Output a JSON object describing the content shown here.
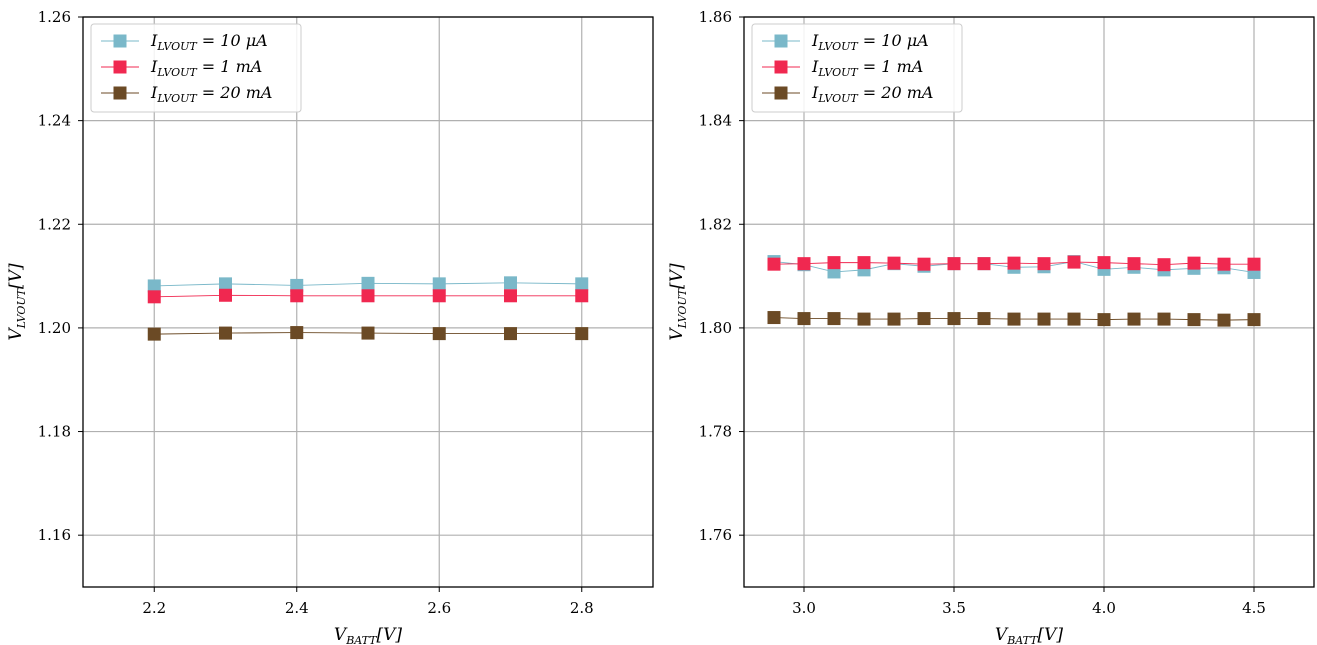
{
  "chart_data": [
    {
      "type": "line",
      "xlabel": {
        "main": "V",
        "sub": "BATT",
        "unit": "[V]"
      },
      "ylabel": {
        "main": "V",
        "sub": "LVOUT",
        "unit": "[V]"
      },
      "xlim": [
        2.1,
        2.9
      ],
      "ylim": [
        1.15,
        1.26
      ],
      "xticks": [
        2.2,
        2.4,
        2.6,
        2.8
      ],
      "xtick_labels": [
        "2.2",
        "2.4",
        "2.6",
        "2.8"
      ],
      "yticks": [
        1.16,
        1.18,
        1.2,
        1.22,
        1.24,
        1.26
      ],
      "ytick_labels": [
        "1.16",
        "1.18",
        "1.20",
        "1.22",
        "1.24",
        "1.26"
      ],
      "grid": true,
      "legend_position": "top-left",
      "x": [
        2.2,
        2.3,
        2.4,
        2.5,
        2.6,
        2.7,
        2.8
      ],
      "series": [
        {
          "name_main": "I",
          "name_sub": "LVOUT",
          "name_rest": " = 10 μA",
          "color": "#7ab8c9",
          "values": [
            1.2081,
            1.2085,
            1.2082,
            1.2086,
            1.2085,
            1.2087,
            1.2085
          ]
        },
        {
          "name_main": "I",
          "name_sub": "LVOUT",
          "name_rest": " = 1 mA",
          "color": "#f02850",
          "values": [
            1.206,
            1.2063,
            1.2062,
            1.2062,
            1.2062,
            1.2062,
            1.2062
          ]
        },
        {
          "name_main": "I",
          "name_sub": "LVOUT",
          "name_rest": " = 20 mA",
          "color": "#6b4a25",
          "values": [
            1.1988,
            1.199,
            1.1991,
            1.199,
            1.1989,
            1.1989,
            1.1989
          ]
        }
      ]
    },
    {
      "type": "line",
      "xlabel": {
        "main": "V",
        "sub": "BATT",
        "unit": "[V]"
      },
      "ylabel": {
        "main": "V",
        "sub": "LVOUT",
        "unit": "[V]"
      },
      "xlim": [
        2.8,
        4.7
      ],
      "ylim": [
        1.75,
        1.86
      ],
      "xticks": [
        3.0,
        3.5,
        4.0,
        4.5
      ],
      "xtick_labels": [
        "3.0",
        "3.5",
        "4.0",
        "4.5"
      ],
      "yticks": [
        1.76,
        1.78,
        1.8,
        1.82,
        1.84,
        1.86
      ],
      "ytick_labels": [
        "1.76",
        "1.78",
        "1.80",
        "1.82",
        "1.84",
        "1.86"
      ],
      "grid": true,
      "legend_position": "top-left",
      "x": [
        2.9,
        3.0,
        3.1,
        3.2,
        3.3,
        3.4,
        3.5,
        3.6,
        3.7,
        3.8,
        3.9,
        4.0,
        4.1,
        4.2,
        4.3,
        4.4,
        4.5
      ],
      "series": [
        {
          "name_main": "I",
          "name_sub": "LVOUT",
          "name_rest": " = 10 μA",
          "color": "#7ab8c9",
          "values": [
            1.8128,
            1.8122,
            1.8108,
            1.8112,
            1.8124,
            1.8119,
            1.8124,
            1.8124,
            1.8117,
            1.8118,
            1.8128,
            1.8113,
            1.8117,
            1.8112,
            1.8115,
            1.8116,
            1.8107
          ]
        },
        {
          "name_main": "I",
          "name_sub": "LVOUT",
          "name_rest": " = 1 mA",
          "color": "#f02850",
          "values": [
            1.8123,
            1.8124,
            1.8126,
            1.8126,
            1.8125,
            1.8123,
            1.8124,
            1.8124,
            1.8125,
            1.8124,
            1.8127,
            1.8126,
            1.8124,
            1.8122,
            1.8125,
            1.8123,
            1.8123
          ]
        },
        {
          "name_main": "I",
          "name_sub": "LVOUT",
          "name_rest": " = 20 mA",
          "color": "#6b4a25",
          "values": [
            1.802,
            1.8018,
            1.8018,
            1.8017,
            1.8017,
            1.8018,
            1.8018,
            1.8018,
            1.8017,
            1.8017,
            1.8017,
            1.8016,
            1.8017,
            1.8017,
            1.8016,
            1.8015,
            1.8016
          ]
        }
      ]
    }
  ]
}
